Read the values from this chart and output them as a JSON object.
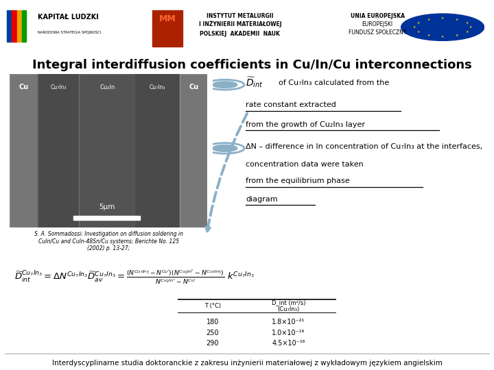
{
  "title": "Integral interdiffusion coefficients in Cu/In/Cu interconnections",
  "bg_color": "#ffffff",
  "title_fontsize": 13,
  "footer_text": "Interdyscyplinarne studia doktoranckie z zakresu inżynierii materiałowej z wykładowym językiem angielskim",
  "ref_text": "S. A. Sommadossi; Investigation on diffusion soldering in\nCuIn/Cu and CuIn-48Sn/Cu systems; Berichte No. 125\n(2002) p. 13-27;",
  "arrow_color": "#8ab0c8",
  "bullet_color": "#8ab0c8",
  "table_col1": [
    "T (°C)",
    "180",
    "250",
    "290"
  ],
  "table_col2": [
    "D_int (m²/s)\n(Cu₇In₃)",
    "1.8×10⁻²¹",
    "1.0×10⁻¹⁶",
    "4.5×10⁻¹⁶"
  ]
}
